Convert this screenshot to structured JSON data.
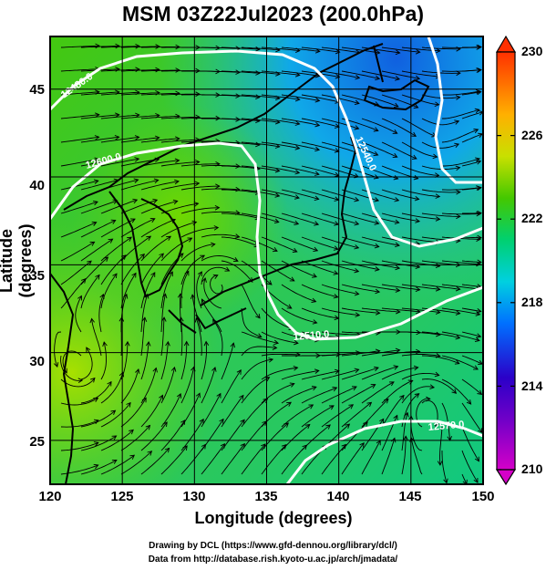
{
  "title": "MSM 03Z22Jul2023 (200.0hPa)",
  "axes": {
    "x_label": "Longitude (degrees)",
    "y_label": "Latitude  (degrees)",
    "x_ticks": [
      "120",
      "125",
      "130",
      "135",
      "140",
      "145",
      "150"
    ],
    "y_ticks": [
      "25",
      "30",
      "35",
      "40",
      "45"
    ],
    "x_range": [
      120,
      150
    ],
    "y_range": [
      22.5,
      48
    ]
  },
  "colorbar": {
    "ticks": [
      "210",
      "214",
      "218",
      "222",
      "226",
      "230"
    ],
    "range": [
      210,
      230
    ],
    "colors": [
      "#d400c8",
      "#2b00c8",
      "#0070ff",
      "#00d0e0",
      "#00d070",
      "#44c800",
      "#c8e000",
      "#ffb000",
      "#ff3000"
    ]
  },
  "contours": {
    "labels": [
      "12480.0",
      "12600.0",
      "12540.0",
      "12510.0",
      "12570.0"
    ],
    "color": "#ffffff"
  },
  "footer": {
    "line1": "Drawing by DCL (https://www.gfd-dennou.org/library/dcl/)",
    "line2": "Data from http://database.rish.kyoto-u.ac.jp/arch/jmadata/"
  }
}
